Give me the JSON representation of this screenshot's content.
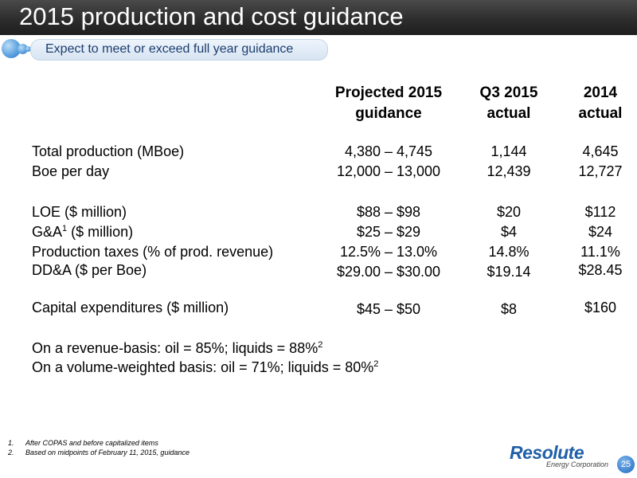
{
  "slide": {
    "title": "2015 production and cost guidance",
    "subtitle": "Expect to meet or exceed full year guidance",
    "page_number": "25"
  },
  "columns": [
    {
      "line1": "Projected 2015",
      "line2": "guidance"
    },
    {
      "line1": "Q3 2015",
      "line2": "actual"
    },
    {
      "line1": "2014",
      "line2": "actual"
    }
  ],
  "rows": [
    {
      "label": "Total production (MBoe)",
      "label_sup": "",
      "label_suffix": "",
      "values": [
        "4,380 – 4,745",
        "1,144",
        "4,645"
      ]
    },
    {
      "label": "Boe per day",
      "label_sup": "",
      "label_suffix": "",
      "values": [
        "12,000 – 13,000",
        "12,439",
        "12,727"
      ]
    },
    {
      "label": "LOE ($ million)",
      "label_sup": "",
      "label_suffix": "",
      "values": [
        "$88 – $98",
        "$20",
        "$112"
      ]
    },
    {
      "label": "G&A",
      "label_sup": "1",
      "label_suffix": " ($ million)",
      "values": [
        "$25 – $29",
        "$4",
        "$24"
      ]
    },
    {
      "label": "Production taxes (% of prod. revenue)",
      "label_sup": "",
      "label_suffix": "",
      "values": [
        "12.5% – 13.0%",
        "14.8%",
        "11.1%"
      ]
    },
    {
      "label": "DD&A ($ per Boe)",
      "label_sup": "",
      "label_suffix": "",
      "values": [
        "$29.00 – $30.00",
        "$19.14",
        "$28.45"
      ]
    },
    {
      "label": "Capital expenditures ($ million)",
      "label_sup": "",
      "label_suffix": "",
      "values": [
        "$45 – $50",
        "$8",
        "$160"
      ]
    }
  ],
  "notes": [
    {
      "text": "On a revenue-basis: oil = 85%; liquids = 88%",
      "sup": "2"
    },
    {
      "text": "On a volume-weighted basis: oil = 71%; liquids = 80%",
      "sup": "2"
    }
  ],
  "footnotes": [
    {
      "num": "1.",
      "text": "After COPAS and before capitalized items"
    },
    {
      "num": "2.",
      "text": "Based on midpoints of February 11, 2015, guidance"
    }
  ],
  "logo": {
    "name": "Resolute",
    "sub": "Energy Corporation"
  },
  "colors": {
    "title_bar": "#2b2b2b",
    "title_text": "#ffffff",
    "subtitle_text": "#1a3d6e",
    "accent_blue": "#3a80cc",
    "logo_blue": "#1f5fa8"
  }
}
